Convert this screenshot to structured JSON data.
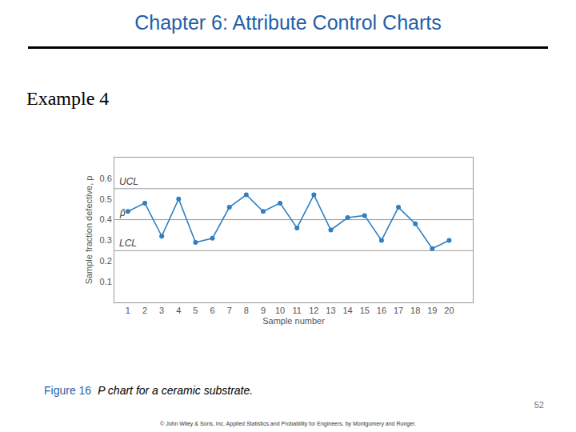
{
  "slide": {
    "heading": "Chapter 6: Attribute Control Charts",
    "example": "Example 4",
    "caption_label": "Figure 16",
    "caption": "P chart for a ceramic substrate.",
    "page_number": "52",
    "footer": "© John Wiley & Sons, Inc.  Applied Statistics and Probability for Engineers, by Montgomery and Runger."
  },
  "chart_data": {
    "type": "line",
    "x_label": "Sample number",
    "y_label": "Sample fraction defective, p",
    "x": [
      1,
      2,
      3,
      4,
      5,
      6,
      7,
      8,
      9,
      10,
      11,
      12,
      13,
      14,
      15,
      16,
      17,
      18,
      19,
      20
    ],
    "values": [
      0.44,
      0.48,
      0.32,
      0.5,
      0.29,
      0.31,
      0.46,
      0.52,
      0.44,
      0.48,
      0.36,
      0.52,
      0.35,
      0.41,
      0.42,
      0.3,
      0.46,
      0.38,
      0.26,
      0.3
    ],
    "color": "#2f7fc1",
    "marker": "circle",
    "xlim": [
      0.2,
      21.4
    ],
    "xticks": [
      1,
      2,
      3,
      4,
      5,
      6,
      7,
      8,
      9,
      10,
      11,
      12,
      13,
      14,
      15,
      16,
      17,
      18,
      19,
      20
    ],
    "ylim": [
      0,
      0.7
    ],
    "yticks": [
      0.1,
      0.2,
      0.3,
      0.4,
      0.5,
      0.6
    ],
    "reference_lines": [
      {
        "label": "UCL",
        "value": 0.55
      },
      {
        "label": "p̄",
        "value": 0.4
      },
      {
        "label": "LCL",
        "value": 0.25
      }
    ],
    "grid": false
  }
}
